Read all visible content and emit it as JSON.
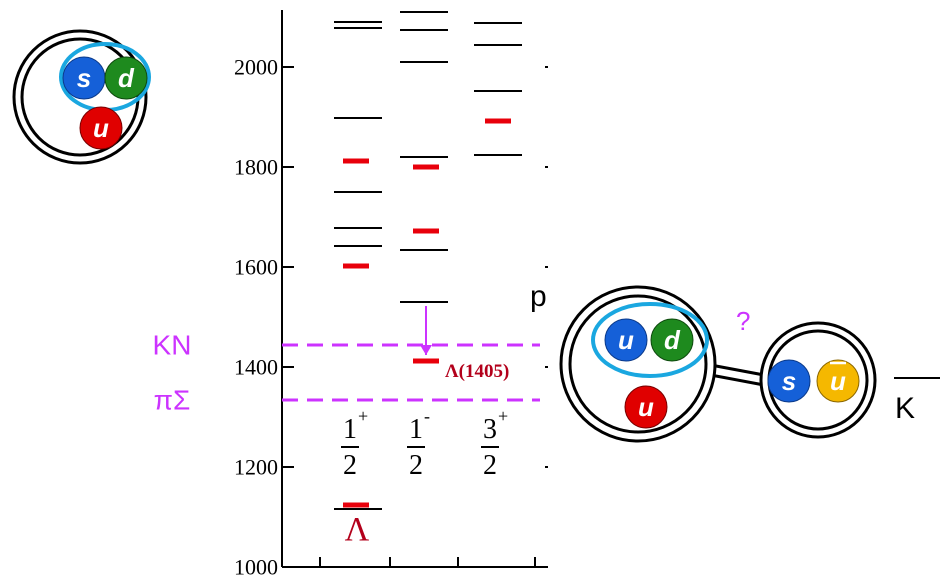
{
  "chart_data": {
    "type": "levels",
    "ylim": [
      1000,
      2110
    ],
    "yticks": [
      1000,
      1200,
      1400,
      1600,
      1800,
      2000
    ],
    "level_color": "#000000",
    "theory_color": "#e8000b",
    "threshold_color": "#cc33ff",
    "columns": [
      {
        "num": "1",
        "den": "2",
        "parity": "+",
        "levels": [
          2090,
          2078,
          1898,
          1750,
          1678,
          1642,
          1116
        ],
        "theory": [
          1812,
          1602,
          1124
        ]
      },
      {
        "num": "1",
        "den": "2",
        "parity": "-",
        "levels": [
          2110,
          2074,
          2010,
          1820,
          1634,
          1530
        ],
        "theory": [
          1800,
          1672,
          1412
        ]
      },
      {
        "num": "3",
        "den": "2",
        "parity": "+",
        "levels": [
          2088,
          2044,
          1952,
          1824
        ],
        "theory": [
          1892
        ]
      }
    ],
    "thresholds": [
      {
        "name": "KN",
        "value": 1444
      },
      {
        "name": "πΣ",
        "value": 1334
      }
    ],
    "annotation": "Λ(1405)",
    "ground_label": "Λ"
  },
  "diagrams": {
    "lambda": {
      "quarks": [
        "s",
        "d",
        "u"
      ]
    },
    "molecule": {
      "baryon_label": "p",
      "baryon_quarks": [
        "u",
        "d",
        "u"
      ],
      "meson_quarks": [
        "s",
        "u"
      ],
      "meson_label": "K",
      "question": "?"
    }
  }
}
